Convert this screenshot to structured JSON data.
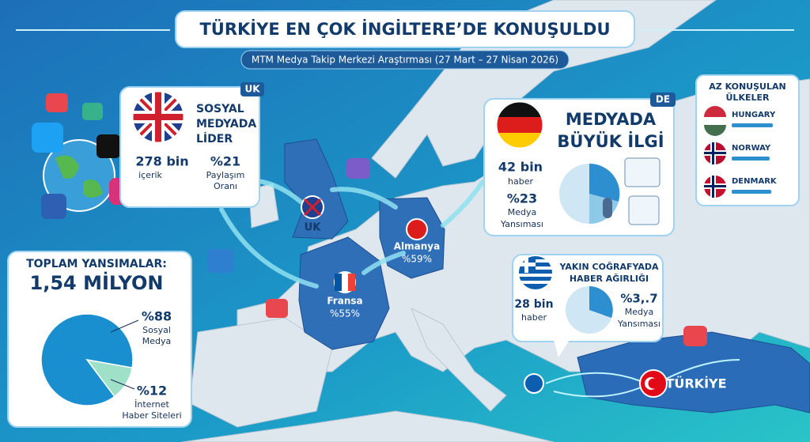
{
  "header": {
    "title": "TÜRKİYE EN ÇOK İNGİLTERE’DE KONUŞULDU",
    "subtitle": "MTM Medya Takip Merkezi Araştırması (27 Mart – 27 Nisan 2026)"
  },
  "uk_card": {
    "tag": "UK",
    "heading": [
      "SOSYAL",
      "MEDYADA",
      "LİDER"
    ],
    "count": "278 bin",
    "count_label": "içerik",
    "share": "%21",
    "share_label": [
      "Paylaşım",
      "Oranı"
    ]
  },
  "de_card": {
    "tag": "DE",
    "heading": [
      "MEDYADA",
      "BÜYÜK İLGİ"
    ],
    "count": "42 bin",
    "count_label": "haber",
    "share": "%23",
    "share_label": [
      "Medya",
      "Yansıması"
    ]
  },
  "greece_card": {
    "heading": [
      "YAKIN COĞRAFYADA",
      "HABER AĞIRLIĞI"
    ],
    "count": "28 bin",
    "count_label": "haber",
    "share": "%3,.7",
    "share_label": [
      "Medya",
      "Yansıması"
    ]
  },
  "less_discussed": {
    "title": [
      "AZ KONUŞULAN",
      "ÜLKELER"
    ],
    "countries": [
      "HUNGARY",
      "NORWAY",
      "DENMARK"
    ]
  },
  "total": {
    "title": "TOPLAM YANSIMALAR:",
    "amount": "1,54 MİLYON",
    "pie": {
      "values": [
        88,
        12
      ],
      "value_labels": [
        "%88",
        "%12"
      ],
      "labels": [
        [
          "Sosyal",
          "Medya"
        ],
        [
          "İnternet",
          "Haber Siteleri"
        ]
      ],
      "colors": [
        "#1a8fcf",
        "#9fe0c8"
      ]
    }
  },
  "map_labels": {
    "uk": "UK",
    "germany": {
      "name": "Almanya",
      "share": "%59%"
    },
    "france": {
      "name": "Fransa",
      "share": "%55%"
    },
    "turkey": "TÜRKİYE"
  }
}
